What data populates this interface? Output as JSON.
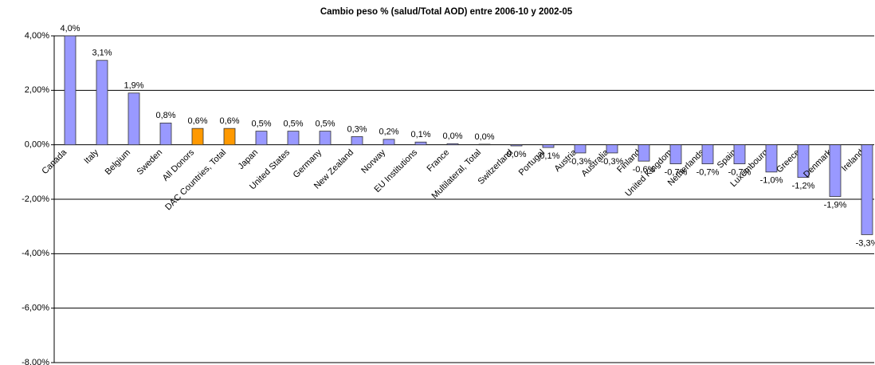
{
  "chart_data": {
    "type": "bar",
    "title": "Cambio peso % (salud/Total AOD) entre 2006-10 y 2002-05",
    "categories": [
      "Canada",
      "Italy",
      "Belgium",
      "Sweden",
      "All Donors",
      "DAC Countries, Total",
      "Japan",
      "United States",
      "Germany",
      "New Zealand",
      "Norway",
      "EU Institutions",
      "France",
      "Multilateral, Total",
      "Switzerland",
      "Portugal",
      "Austria",
      "Australia",
      "Finland",
      "United Kingdom",
      "Netherlands",
      "Spain",
      "Luxembourg",
      "Greece",
      "Denmark",
      "Ireland"
    ],
    "values": [
      4.0,
      3.1,
      1.9,
      0.8,
      0.6,
      0.6,
      0.5,
      0.5,
      0.5,
      0.3,
      0.2,
      0.1,
      0.04,
      0.02,
      -0.04,
      -0.1,
      -0.3,
      -0.3,
      -0.6,
      -0.7,
      -0.7,
      -0.7,
      -1.0,
      -1.2,
      -1.9,
      -3.3
    ],
    "value_labels": [
      "4,0%",
      "3,1%",
      "1,9%",
      "0,8%",
      "0,6%",
      "0,6%",
      "0,5%",
      "0,5%",
      "0,5%",
      "0,3%",
      "0,2%",
      "0,1%",
      "0,0%",
      "0,0%",
      "0,0%",
      "-0,1%",
      "-0,3%",
      "-0,3%",
      "-0,6%",
      "-0,7%",
      "-0,7%",
      "-0,7%",
      "-1,0%",
      "-1,2%",
      "-1,9%",
      "-3,3%"
    ],
    "colors": [
      "#9999ff",
      "#9999ff",
      "#9999ff",
      "#9999ff",
      "#ff9900",
      "#ff9900",
      "#9999ff",
      "#9999ff",
      "#9999ff",
      "#9999ff",
      "#9999ff",
      "#9999ff",
      "#9999ff",
      "#9999ff",
      "#9999ff",
      "#9999ff",
      "#9999ff",
      "#9999ff",
      "#9999ff",
      "#9999ff",
      "#9999ff",
      "#9999ff",
      "#9999ff",
      "#9999ff",
      "#9999ff",
      "#9999ff"
    ],
    "ylim": [
      -8,
      4
    ],
    "yticks": [
      {
        "value": -8,
        "label": "-8,00%"
      },
      {
        "value": -6,
        "label": "-6,00%"
      },
      {
        "value": -4,
        "label": "-4,00%"
      },
      {
        "value": -2,
        "label": "-2,00%"
      },
      {
        "value": 0,
        "label": "0,00%"
      },
      {
        "value": 2,
        "label": "2,00%"
      },
      {
        "value": 4,
        "label": "4,00%"
      }
    ],
    "grid": true
  }
}
